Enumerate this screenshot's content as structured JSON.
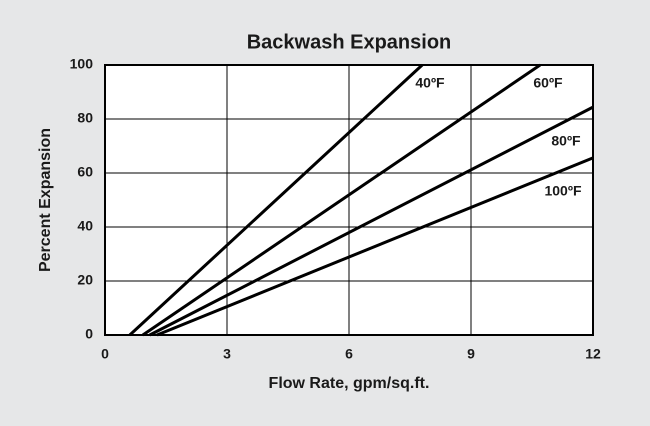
{
  "chart_data": {
    "type": "line",
    "title": "Backwash Expansion",
    "x_label": "Flow Rate, gpm/sq.ft.",
    "y_label": "Percent Expansion",
    "xlim": [
      0,
      12
    ],
    "ylim": [
      0,
      100
    ],
    "xticks": [
      0,
      3,
      6,
      9,
      12
    ],
    "yticks": [
      0,
      20,
      40,
      60,
      80,
      100
    ],
    "grid": true,
    "series": [
      {
        "name": "40ºF",
        "color": "#000000",
        "x": [
          0.61,
          7.8
        ],
        "values": [
          0,
          100
        ]
      },
      {
        "name": "60ºF",
        "color": "#000000",
        "x": [
          0.93,
          10.7
        ],
        "values": [
          0,
          100
        ]
      },
      {
        "name": "80ºF",
        "color": "#000000",
        "x": [
          1.1,
          12
        ],
        "values": [
          0,
          84.4
        ]
      },
      {
        "name": "100ºF",
        "color": "#000000",
        "x": [
          1.28,
          12
        ],
        "values": [
          0,
          65.6
        ]
      }
    ]
  }
}
